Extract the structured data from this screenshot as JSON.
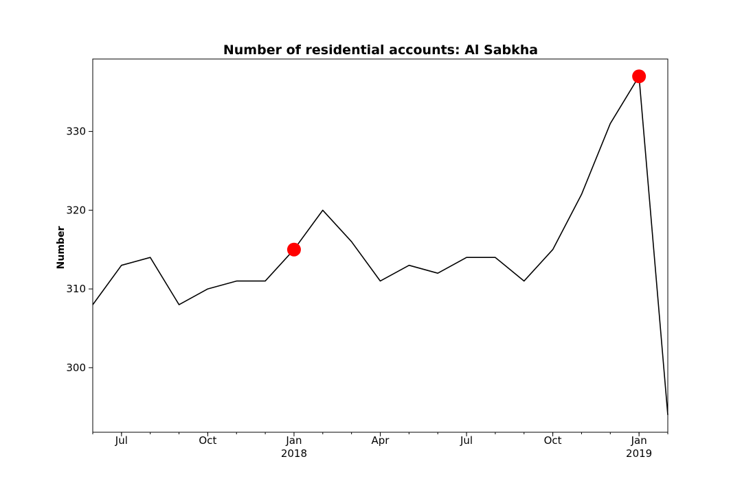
{
  "chart_data": {
    "type": "line",
    "title": "Number of residential accounts: Al Sabkha",
    "xlabel": "",
    "ylabel": "Number",
    "x": [
      "2017-06",
      "2017-07",
      "2017-08",
      "2017-09",
      "2017-10",
      "2017-11",
      "2017-12",
      "2018-01",
      "2018-02",
      "2018-03",
      "2018-04",
      "2018-05",
      "2018-06",
      "2018-07",
      "2018-08",
      "2018-09",
      "2018-10",
      "2018-11",
      "2018-12",
      "2019-01",
      "2019-02"
    ],
    "series": [
      {
        "values": [
          308,
          313,
          314,
          308,
          310,
          311,
          311,
          315,
          320,
          316,
          311,
          313,
          312,
          314,
          314,
          311,
          315,
          322,
          331,
          337,
          294
        ],
        "color": "#000000"
      }
    ],
    "highlights": [
      {
        "x": "2018-01",
        "y": 315,
        "color": "#ff0000"
      },
      {
        "x": "2019-01",
        "y": 337,
        "color": "#ff0000"
      }
    ],
    "ylim": [
      291.8,
      339.2
    ],
    "yticks": [
      300,
      310,
      320,
      330
    ],
    "xticks": [
      {
        "x": "2017-07",
        "label": "Jul",
        "sublabel": ""
      },
      {
        "x": "2017-10",
        "label": "Oct",
        "sublabel": ""
      },
      {
        "x": "2018-01",
        "label": "Jan",
        "sublabel": "2018"
      },
      {
        "x": "2018-04",
        "label": "Apr",
        "sublabel": ""
      },
      {
        "x": "2018-07",
        "label": "Jul",
        "sublabel": ""
      },
      {
        "x": "2018-10",
        "label": "Oct",
        "sublabel": ""
      },
      {
        "x": "2019-01",
        "label": "Jan",
        "sublabel": "2019"
      }
    ],
    "grid": false,
    "legend": false
  }
}
